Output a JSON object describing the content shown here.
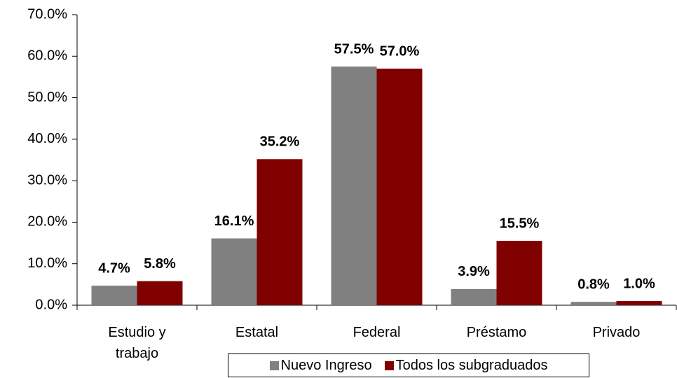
{
  "chart_data": {
    "type": "bar",
    "categories": [
      "Estudio y trabajo",
      "Estatal",
      "Federal",
      "Préstamo",
      "Privado"
    ],
    "series": [
      {
        "name": "Nuevo Ingreso",
        "color": "#808080",
        "values": [
          4.7,
          16.1,
          57.5,
          3.9,
          0.8
        ],
        "value_labels": [
          "4.7%",
          "16.1%",
          "57.5%",
          "3.9%",
          "0.8%"
        ]
      },
      {
        "name": "Todos los subgraduados",
        "color": "#800000",
        "values": [
          5.8,
          35.2,
          57.0,
          15.5,
          1.0
        ],
        "value_labels": [
          "5.8%",
          "35.2%",
          "57.0%",
          "15.5%",
          "1.0%"
        ]
      }
    ],
    "ylim": [
      0,
      70
    ],
    "yticks": [
      {
        "value": 0,
        "label": "0.0%"
      },
      {
        "value": 10,
        "label": "10.0%"
      },
      {
        "value": 20,
        "label": "20.0%"
      },
      {
        "value": 30,
        "label": "30.0%"
      },
      {
        "value": 40,
        "label": "40.0%"
      },
      {
        "value": 50,
        "label": "50.0%"
      },
      {
        "value": 60,
        "label": "60.0%"
      },
      {
        "value": 70,
        "label": "70.0%"
      }
    ],
    "grid": false,
    "legend": "bottom"
  }
}
